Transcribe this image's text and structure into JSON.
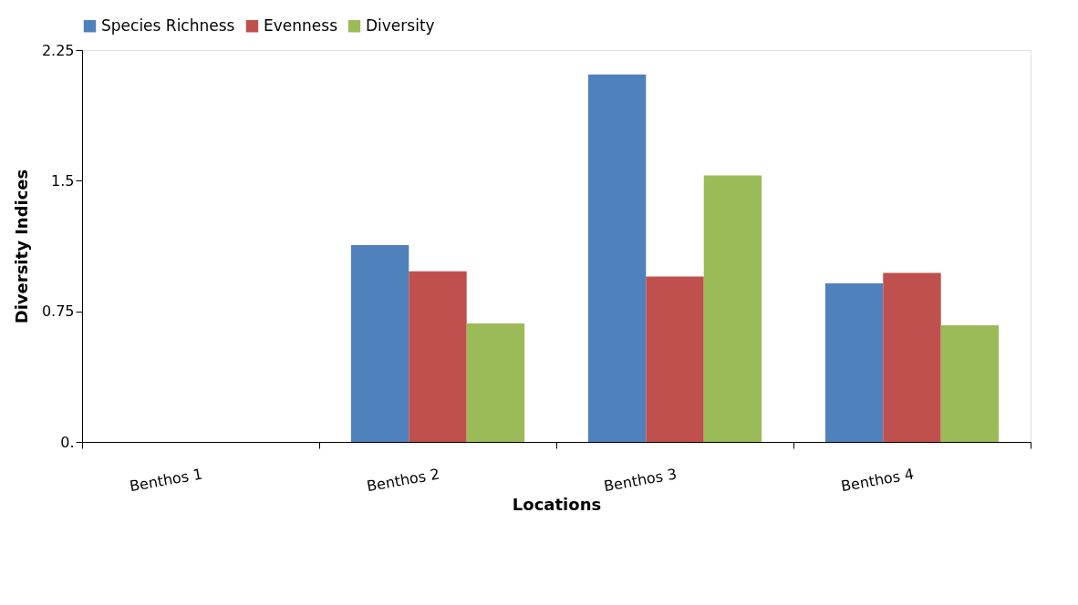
{
  "chart_data": {
    "type": "bar",
    "xlabel": "Locations",
    "ylabel": "Diversity Indices",
    "categories": [
      "Benthos 1",
      "Benthos 2",
      "Benthos 3",
      "Benthos 4"
    ],
    "series": [
      {
        "name": "Species Richness",
        "color": "#4f81bd",
        "values": [
          0,
          1.13,
          2.11,
          0.91
        ]
      },
      {
        "name": "Evenness",
        "color": "#c0504d",
        "values": [
          0,
          0.98,
          0.95,
          0.97
        ]
      },
      {
        "name": "Diversity",
        "color": "#9bbb59",
        "values": [
          0,
          0.68,
          1.53,
          0.67
        ]
      }
    ],
    "ylim": [
      0,
      2.25
    ],
    "yticks": [
      {
        "value": 0,
        "label": "0."
      },
      0.75,
      1.5,
      2.25
    ],
    "grid": false,
    "legend": "top"
  }
}
